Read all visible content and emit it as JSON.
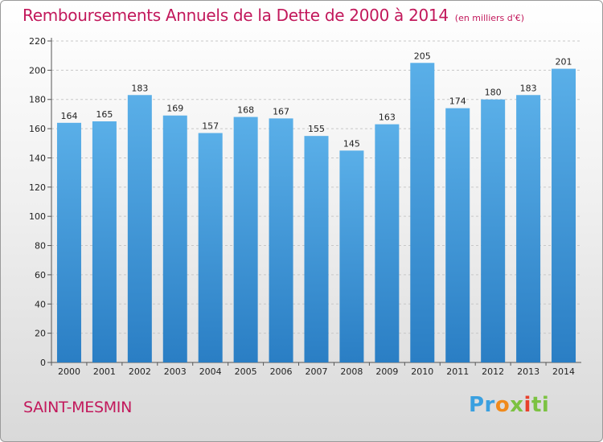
{
  "header": {
    "title": "Remboursements Annuels de la Dette de 2000 à 2014",
    "unit": "(en milliers d'€)"
  },
  "footer": {
    "commune": "SAINT-MESMIN",
    "brand_parts": [
      "Pr",
      "o",
      "x",
      "i",
      "ti"
    ]
  },
  "colors": {
    "bar_top": "#5aafe8",
    "bar_bottom": "#2a7ec4",
    "title": "#c2185b",
    "grid": "#c8c8c8"
  },
  "chart_data": {
    "type": "bar",
    "title": "Remboursements Annuels de la Dette de 2000 à 2014",
    "subtitle": "(en milliers d'€)",
    "xlabel": "",
    "ylabel": "",
    "categories": [
      "2000",
      "2001",
      "2002",
      "2003",
      "2004",
      "2005",
      "2006",
      "2007",
      "2008",
      "2009",
      "2010",
      "2011",
      "2012",
      "2013",
      "2014"
    ],
    "values": [
      164,
      165,
      183,
      169,
      157,
      168,
      167,
      155,
      145,
      163,
      205,
      174,
      180,
      183,
      201
    ],
    "ylim": [
      0,
      220
    ],
    "yticks": [
      0,
      20,
      40,
      60,
      80,
      100,
      120,
      140,
      160,
      180,
      200,
      220
    ],
    "grid": true,
    "grid_style": "dashed-horizontal",
    "legend": "none"
  }
}
